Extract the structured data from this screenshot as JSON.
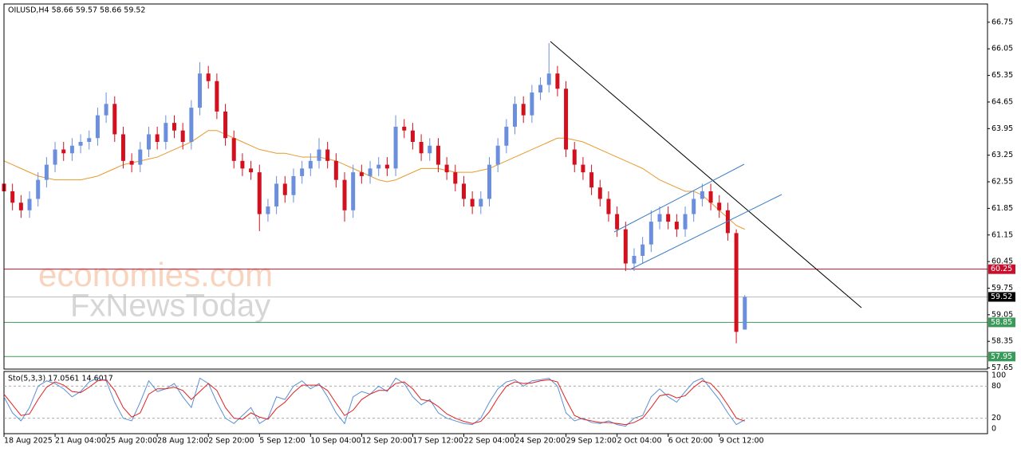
{
  "chart_data": {
    "type": "candlestick",
    "title": "OILUSD,H4  58.66 59.57 58.66 59.52",
    "watermarks": [
      "economies.com",
      "FxNewsToday"
    ],
    "up_color": "#6b8fdc",
    "down_color": "#d2101e",
    "open": [
      62.5,
      62.3,
      62.0,
      61.8,
      62.1,
      62.6,
      63.0,
      63.4,
      63.3,
      63.5,
      63.6,
      63.7,
      64.3,
      64.6,
      63.8,
      63.1,
      63.0,
      63.4,
      63.8,
      63.6,
      64.1,
      63.9,
      63.6,
      64.5,
      65.4,
      65.2,
      64.4,
      63.7,
      63.1,
      62.9,
      62.8,
      61.7,
      61.9,
      62.5,
      62.2,
      62.7,
      62.9,
      63.1,
      63.4,
      63.1,
      62.6,
      61.8,
      62.8,
      62.7,
      62.9,
      63.0,
      62.9,
      64.0,
      63.9,
      63.6,
      63.3,
      63.5,
      63.0,
      62.8,
      62.5,
      62.1,
      61.9,
      62.1,
      63.0,
      63.5,
      64.0,
      64.6,
      64.3,
      64.9,
      65.1,
      65.4,
      65.0,
      63.4,
      63.0,
      62.8,
      62.4,
      62.1,
      61.7,
      61.3,
      60.4,
      60.6,
      60.9,
      61.5,
      61.7,
      61.5,
      61.3,
      61.7,
      62.1,
      62.3,
      62.0,
      61.8,
      61.2,
      58.66
    ],
    "high": [
      62.7,
      62.5,
      62.2,
      62.3,
      62.8,
      63.2,
      63.6,
      63.6,
      63.7,
      63.8,
      63.9,
      64.5,
      64.9,
      64.8,
      64.0,
      63.3,
      63.6,
      64.0,
      64.0,
      64.3,
      64.3,
      64.1,
      64.7,
      65.7,
      65.6,
      65.4,
      64.6,
      63.9,
      63.3,
      63.1,
      63.0,
      62.1,
      62.7,
      62.7,
      62.9,
      63.1,
      63.3,
      63.7,
      63.6,
      63.3,
      62.8,
      63.0,
      63.0,
      63.1,
      63.2,
      63.2,
      64.3,
      64.2,
      64.1,
      63.8,
      63.7,
      63.7,
      63.2,
      63.0,
      62.7,
      62.3,
      62.3,
      63.2,
      63.7,
      64.2,
      64.8,
      64.8,
      65.1,
      65.3,
      66.2,
      65.6,
      65.2,
      63.6,
      63.2,
      63.0,
      62.6,
      62.3,
      61.9,
      61.5,
      60.8,
      61.1,
      61.8,
      61.9,
      61.9,
      61.7,
      61.9,
      62.3,
      62.5,
      62.5,
      62.2,
      62.0,
      61.3,
      59.57
    ],
    "low": [
      62.1,
      61.8,
      61.6,
      61.6,
      61.9,
      62.4,
      62.8,
      63.1,
      63.1,
      63.3,
      63.4,
      63.5,
      64.1,
      63.6,
      62.9,
      62.8,
      62.8,
      63.2,
      63.4,
      63.4,
      63.7,
      63.4,
      63.4,
      64.3,
      65.0,
      64.2,
      63.5,
      62.9,
      62.7,
      62.6,
      61.25,
      61.5,
      61.7,
      62.0,
      62.0,
      62.5,
      62.7,
      62.9,
      62.9,
      62.4,
      61.5,
      61.6,
      62.5,
      62.5,
      62.7,
      62.7,
      62.7,
      63.7,
      63.4,
      63.1,
      63.1,
      62.8,
      62.6,
      62.3,
      61.9,
      61.7,
      61.7,
      61.9,
      62.8,
      63.3,
      63.8,
      64.1,
      64.1,
      64.7,
      64.9,
      64.8,
      63.2,
      62.8,
      62.6,
      62.2,
      61.9,
      61.5,
      61.1,
      60.2,
      60.2,
      60.4,
      60.7,
      61.3,
      61.3,
      61.1,
      61.1,
      61.5,
      61.9,
      61.8,
      61.6,
      61.0,
      58.3,
      58.66
    ],
    "close": [
      62.3,
      62.0,
      61.8,
      62.1,
      62.6,
      63.0,
      63.4,
      63.3,
      63.5,
      63.6,
      63.7,
      64.3,
      64.6,
      63.8,
      63.1,
      63.0,
      63.4,
      63.8,
      63.6,
      64.1,
      63.9,
      63.6,
      64.5,
      65.4,
      65.2,
      64.4,
      63.7,
      63.1,
      62.9,
      62.8,
      61.7,
      61.9,
      62.5,
      62.2,
      62.7,
      62.9,
      63.1,
      63.4,
      63.1,
      62.6,
      61.8,
      62.8,
      62.7,
      62.9,
      63.0,
      62.9,
      64.0,
      63.9,
      63.6,
      63.3,
      63.5,
      63.0,
      62.8,
      62.5,
      62.1,
      61.9,
      62.1,
      63.0,
      63.5,
      64.0,
      64.6,
      64.3,
      64.9,
      65.1,
      65.4,
      65.0,
      63.4,
      63.0,
      62.8,
      62.4,
      62.1,
      61.7,
      61.3,
      60.4,
      60.6,
      60.9,
      61.5,
      61.7,
      61.5,
      61.3,
      61.7,
      62.1,
      62.3,
      62.0,
      61.8,
      61.2,
      58.6,
      59.52
    ],
    "ma": {
      "color": "#e69a2e",
      "values": [
        63.1,
        63.0,
        62.9,
        62.8,
        62.7,
        62.65,
        62.6,
        62.6,
        62.6,
        62.6,
        62.65,
        62.7,
        62.8,
        62.9,
        63.0,
        63.05,
        63.1,
        63.15,
        63.2,
        63.3,
        63.4,
        63.5,
        63.6,
        63.75,
        63.9,
        63.9,
        63.8,
        63.7,
        63.6,
        63.5,
        63.4,
        63.35,
        63.3,
        63.3,
        63.25,
        63.2,
        63.2,
        63.2,
        63.15,
        63.1,
        63.0,
        62.9,
        62.8,
        62.7,
        62.6,
        62.55,
        62.6,
        62.7,
        62.8,
        62.9,
        62.9,
        62.9,
        62.85,
        62.8,
        62.8,
        62.8,
        62.85,
        62.9,
        63.0,
        63.1,
        63.2,
        63.3,
        63.4,
        63.5,
        63.6,
        63.7,
        63.7,
        63.65,
        63.6,
        63.5,
        63.4,
        63.3,
        63.2,
        63.1,
        63.0,
        62.9,
        62.75,
        62.6,
        62.5,
        62.4,
        62.3,
        62.3,
        62.2,
        62.0,
        61.8,
        61.6,
        61.4,
        61.3
      ]
    },
    "ylim": [
      57.62,
      67.23
    ],
    "yticks": [
      66.75,
      66.05,
      65.35,
      64.65,
      63.95,
      63.25,
      62.55,
      61.85,
      61.15,
      60.45,
      59.75,
      59.05,
      58.35,
      57.65
    ],
    "xlim": [
      0,
      115.5
    ],
    "xticks": [
      {
        "value": 0,
        "label": "18 Aug 2025"
      },
      {
        "value": 6,
        "label": "21 Aug 04:00"
      },
      {
        "value": 12,
        "label": "25 Aug 20:00"
      },
      {
        "value": 18,
        "label": "28 Aug 12:00"
      },
      {
        "value": 24,
        "label": "2 Sep 20:00"
      },
      {
        "value": 30,
        "label": "5 Sep 12:00"
      },
      {
        "value": 36,
        "label": "10 Sep 04:00"
      },
      {
        "value": 42,
        "label": "12 Sep 20:00"
      },
      {
        "value": 48,
        "label": "17 Sep 12:00"
      },
      {
        "value": 54,
        "label": "22 Sep 04:00"
      },
      {
        "value": 60,
        "label": "24 Sep 20:00"
      },
      {
        "value": 66,
        "label": "29 Sep 12:00"
      },
      {
        "value": 72,
        "label": "2 Oct 04:00"
      },
      {
        "value": 78,
        "label": "6 Oct 20:00"
      },
      {
        "value": 84,
        "label": "9 Oct 12:00"
      }
    ],
    "levels": [
      {
        "value": 60.25,
        "color": "#c8102e",
        "tag_color": "#c8102e"
      },
      {
        "value": 59.52,
        "color": "#bdbdbd",
        "tag_color": "#000000"
      },
      {
        "value": 58.85,
        "color": "#3a9a5a",
        "tag_color": "#3a9a5a"
      },
      {
        "value": 57.95,
        "color": "#3a9a5a",
        "tag_color": "#3a9a5a"
      }
    ],
    "stochastic": {
      "type": "line",
      "label": "Sto(5,3,3) 17.0561 14.6017",
      "ylim": [
        -9,
        107.5
      ],
      "yticks": [
        100,
        80,
        20,
        0
      ],
      "grid_ticks": [
        80,
        20
      ],
      "series": [
        {
          "color": "#5b8fd6",
          "values": [
            60,
            30,
            15,
            40,
            80,
            90,
            85,
            75,
            60,
            70,
            88,
            95,
            90,
            50,
            20,
            15,
            50,
            90,
            70,
            75,
            85,
            60,
            40,
            95,
            85,
            50,
            20,
            10,
            25,
            40,
            10,
            20,
            60,
            55,
            80,
            90,
            75,
            85,
            60,
            30,
            10,
            60,
            70,
            65,
            80,
            70,
            95,
            85,
            60,
            45,
            55,
            30,
            20,
            15,
            10,
            8,
            20,
            50,
            75,
            88,
            92,
            80,
            90,
            92,
            95,
            80,
            30,
            15,
            20,
            12,
            10,
            15,
            8,
            5,
            20,
            25,
            60,
            75,
            60,
            50,
            70,
            88,
            95,
            75,
            55,
            30,
            8,
            17.06
          ]
        },
        {
          "color": "#e02020",
          "values": [
            65,
            45,
            25,
            28,
            55,
            78,
            88,
            82,
            70,
            68,
            78,
            90,
            92,
            72,
            40,
            22,
            30,
            65,
            75,
            75,
            78,
            72,
            55,
            70,
            85,
            72,
            40,
            20,
            18,
            30,
            22,
            18,
            38,
            50,
            68,
            82,
            82,
            82,
            72,
            48,
            25,
            35,
            55,
            65,
            72,
            72,
            85,
            88,
            75,
            55,
            52,
            42,
            28,
            20,
            14,
            10,
            14,
            32,
            58,
            80,
            88,
            85,
            86,
            90,
            92,
            88,
            55,
            25,
            18,
            15,
            12,
            12,
            10,
            8,
            12,
            20,
            40,
            62,
            65,
            58,
            62,
            78,
            90,
            85,
            68,
            45,
            20,
            14.6
          ]
        }
      ]
    }
  }
}
